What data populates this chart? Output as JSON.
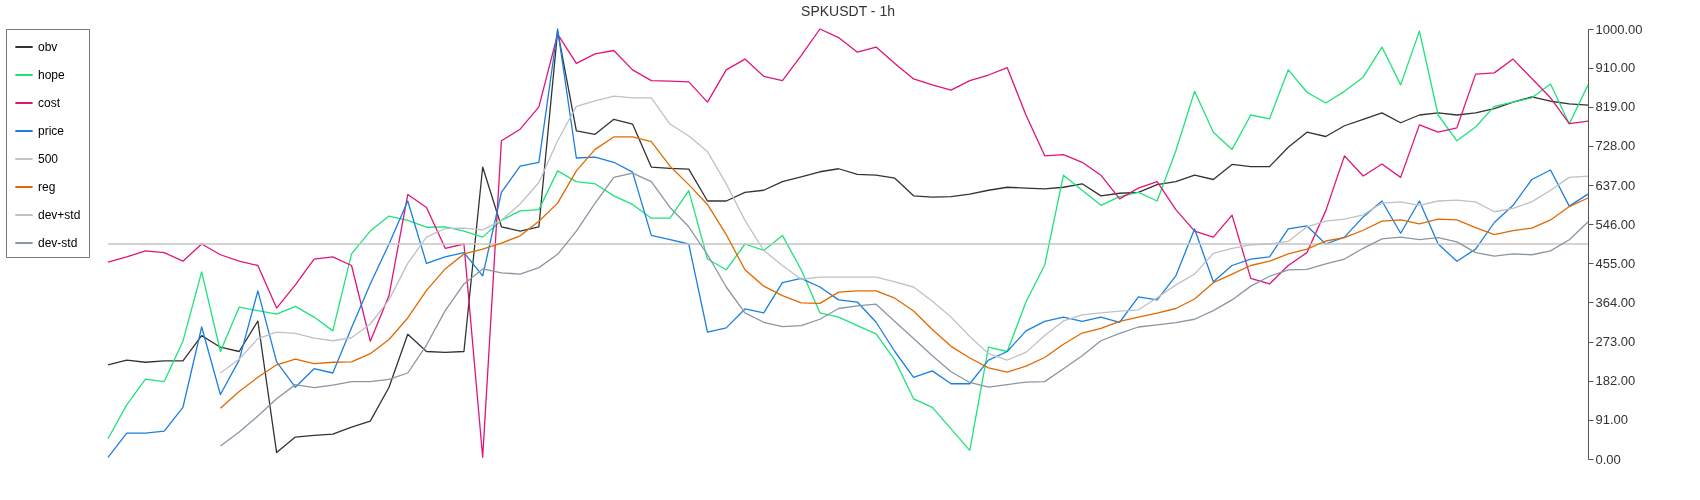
{
  "chart_data": {
    "type": "line",
    "title": "SPKUSDT - 1h",
    "categories": [
      null,
      null,
      null,
      null,
      null,
      null,
      null,
      null,
      null,
      null,
      null,
      null,
      null,
      null,
      null,
      null,
      null,
      null,
      null,
      null,
      null,
      null,
      null,
      null,
      null,
      null,
      null,
      null,
      null,
      null,
      null,
      null,
      null,
      null,
      null,
      null,
      null,
      null,
      null,
      null,
      null,
      null,
      null,
      null,
      null,
      null,
      null,
      null,
      null,
      null,
      null,
      null,
      null,
      null,
      null,
      null,
      null,
      null,
      null,
      null,
      null,
      null,
      null,
      null,
      null,
      null,
      null,
      null,
      null,
      null,
      null,
      null,
      null,
      null,
      null,
      null,
      null,
      null,
      null,
      null
    ],
    "ylim": [
      0,
      1000
    ],
    "yticks": [
      {
        "value": 0,
        "label": "0.00"
      },
      {
        "value": 91,
        "label": "91.00"
      },
      {
        "value": 182,
        "label": "182.00"
      },
      {
        "value": 273,
        "label": "273.00"
      },
      {
        "value": 364,
        "label": "364.00"
      },
      {
        "value": 455,
        "label": "455.00"
      },
      {
        "value": 546,
        "label": "546.00"
      },
      {
        "value": 637,
        "label": "637.00"
      },
      {
        "value": 728,
        "label": "728.00"
      },
      {
        "value": 819,
        "label": "819.00"
      },
      {
        "value": 910,
        "label": "910.00"
      },
      {
        "value": 1000,
        "label": "1000.00"
      }
    ],
    "tick_labels": "y",
    "grid": false,
    "legend": "top left",
    "line_style": "solid",
    "marker": "none",
    "series": [
      {
        "name": "obv",
        "color": "#333333",
        "values": [
          219,
          230,
          225,
          228,
          228,
          287,
          260,
          250,
          321,
          15,
          51,
          55,
          58,
          74,
          88,
          167,
          290,
          250,
          248,
          250,
          679,
          540,
          530,
          540,
          995,
          763,
          755,
          790,
          779,
          679,
          676,
          674,
          600,
          600,
          620,
          625,
          645,
          656,
          668,
          675,
          662,
          660,
          653,
          612,
          609,
          610,
          616,
          625,
          632,
          630,
          628,
          632,
          640,
          612,
          618,
          620,
          638,
          645,
          660,
          650,
          685,
          680,
          680,
          725,
          760,
          750,
          775,
          790,
          805,
          782,
          800,
          805,
          800,
          805,
          815,
          830,
          842,
          832,
          826,
          823
        ]
      },
      {
        "name": "hope",
        "color": "#1ee37a",
        "values": [
          47,
          126,
          186,
          180,
          274,
          435,
          250,
          353,
          345,
          337,
          355,
          330,
          298,
          477,
          530,
          565,
          555,
          539,
          540,
          530,
          516,
          555,
          577,
          580,
          670,
          645,
          640,
          612,
          592,
          560,
          560,
          624,
          465,
          440,
          500,
          485,
          520,
          440,
          340,
          330,
          310,
          291,
          230,
          140,
          120,
          70,
          20,
          260,
          250,
          365,
          451,
          660,
          625,
          590,
          610,
          620,
          600,
          717,
          855,
          760,
          720,
          800,
          791,
          905,
          853,
          828,
          855,
          888,
          958,
          870,
          995,
          800,
          740,
          772,
          820,
          830,
          840,
          872,
          779,
          870
        ]
      },
      {
        "name": "cost",
        "color": "#e0147a",
        "values": [
          458,
          470,
          484,
          480,
          460,
          500,
          475,
          460,
          450,
          351,
          405,
          465,
          470,
          450,
          274,
          380,
          615,
          585,
          490,
          500,
          4,
          740,
          767,
          819,
          988,
          920,
          942,
          950,
          905,
          880,
          879,
          877,
          830,
          905,
          930,
          890,
          880,
          938,
          1000,
          980,
          946,
          958,
          920,
          884,
          870,
          858,
          880,
          893,
          910,
          800,
          705,
          708,
          690,
          660,
          605,
          630,
          645,
          580,
          530,
          516,
          567,
          420,
          407,
          450,
          480,
          577,
          705,
          658,
          686,
          655,
          777,
          760,
          770,
          895,
          898,
          930,
          885,
          840,
          780,
          786
        ]
      },
      {
        "name": "price",
        "color": "#1a7fe0",
        "values": [
          4,
          60,
          60,
          65,
          120,
          307,
          150,
          230,
          391,
          226,
          167,
          210,
          200,
          305,
          407,
          500,
          600,
          455,
          470,
          480,
          426,
          620,
          681,
          690,
          1000,
          700,
          702,
          690,
          667,
          520,
          510,
          500,
          295,
          305,
          349,
          340,
          410,
          420,
          400,
          370,
          365,
          318,
          250,
          190,
          205,
          175,
          175,
          230,
          250,
          298,
          320,
          330,
          320,
          330,
          318,
          377,
          370,
          426,
          535,
          412,
          450,
          465,
          470,
          535,
          542,
          500,
          516,
          563,
          600,
          525,
          600,
          500,
          460,
          488,
          550,
          590,
          650,
          672,
          588,
          616
        ]
      },
      {
        "name": "500",
        "color": "#c4c4c4",
        "values": [
          500,
          500,
          500,
          500,
          500,
          500,
          500,
          500,
          500,
          500,
          500,
          500,
          500,
          500,
          500,
          500,
          500,
          500,
          500,
          500,
          500,
          500,
          500,
          500,
          500,
          500,
          500,
          500,
          500,
          500,
          500,
          500,
          500,
          500,
          500,
          500,
          500,
          500,
          500,
          500,
          500,
          500,
          500,
          500,
          500,
          500,
          500,
          500,
          500,
          500,
          500,
          500,
          500,
          500,
          500,
          500,
          500,
          500,
          500,
          500,
          500,
          500,
          500,
          500,
          500,
          500,
          500,
          500,
          500,
          500,
          500,
          500,
          500,
          500,
          500,
          500,
          500,
          500,
          500,
          500
        ]
      },
      {
        "name": "reg",
        "color": "#e06a00",
        "values": [
          null,
          null,
          null,
          null,
          null,
          null,
          118,
          157,
          190,
          219,
          232,
          222,
          225,
          226,
          245,
          278,
          328,
          392,
          442,
          477,
          488,
          502,
          519,
          553,
          595,
          670,
          720,
          749,
          749,
          738,
          681,
          638,
          592,
          522,
          440,
          402,
          380,
          363,
          362,
          388,
          391,
          391,
          374,
          344,
          301,
          262,
          235,
          212,
          202,
          216,
          236,
          267,
          293,
          304,
          320,
          330,
          339,
          350,
          372,
          410,
          430,
          450,
          460,
          477,
          488,
          507,
          515,
          532,
          553,
          556,
          547,
          558,
          556,
          538,
          522,
          531,
          537,
          556,
          587,
          607
        ]
      },
      {
        "name": "dev+std",
        "color": "#bcc2c8",
        "values": [
          null,
          null,
          null,
          null,
          null,
          null,
          200,
          232,
          280,
          295,
          292,
          281,
          275,
          282,
          314,
          370,
          455,
          516,
          536,
          537,
          533,
          555,
          593,
          643,
          740,
          820,
          833,
          844,
          840,
          840,
          779,
          751,
          715,
          640,
          555,
          485,
          450,
          418,
          423,
          423,
          423,
          423,
          412,
          400,
          367,
          330,
          285,
          245,
          230,
          248,
          287,
          321,
          335,
          340,
          344,
          347,
          375,
          405,
          430,
          478,
          490,
          498,
          500,
          506,
          540,
          553,
          558,
          568,
          595,
          598,
          590,
          600,
          602,
          598,
          575,
          583,
          598,
          625,
          655,
          658
        ]
      },
      {
        "name": "dev-std",
        "color": "#8a96a2",
        "values": [
          null,
          null,
          null,
          null,
          null,
          null,
          30,
          63,
          100,
          140,
          173,
          166,
          172,
          180,
          180,
          185,
          200,
          265,
          345,
          407,
          442,
          433,
          430,
          445,
          476,
          530,
          595,
          655,
          665,
          645,
          585,
          540,
          475,
          400,
          340,
          318,
          308,
          310,
          325,
          350,
          356,
          360,
          320,
          280,
          240,
          203,
          178,
          167,
          173,
          179,
          180,
          210,
          240,
          275,
          292,
          307,
          312,
          317,
          325,
          345,
          370,
          402,
          425,
          440,
          441,
          454,
          465,
          490,
          512,
          516,
          510,
          515,
          505,
          480,
          472,
          477,
          475,
          484,
          510,
          551
        ]
      }
    ]
  }
}
